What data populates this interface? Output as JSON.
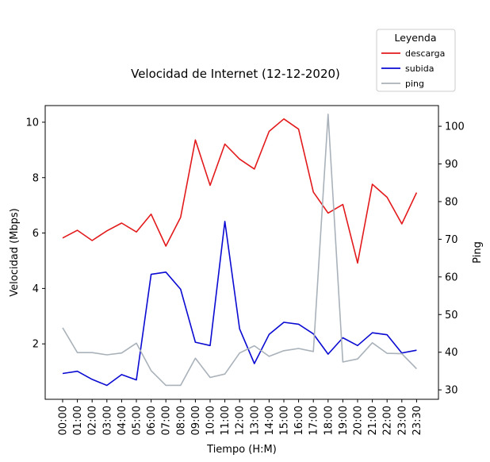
{
  "chart_data": {
    "type": "line",
    "title": "Velocidad de Internet (12-12-2020)",
    "xlabel": "Tiempo (H:M)",
    "ylabel": "Velocidad (Mbps)",
    "y2label": "Ping",
    "categories": [
      "00:00",
      "01:00",
      "02:00",
      "03:00",
      "04:00",
      "05:00",
      "06:00",
      "07:00",
      "08:00",
      "09:00",
      "10:00",
      "11:00",
      "12:00",
      "13:00",
      "14:00",
      "15:00",
      "16:00",
      "17:00",
      "18:00",
      "19:00",
      "20:00",
      "21:00",
      "22:00",
      "23:00",
      "23:30"
    ],
    "ylim": [
      0,
      10.6
    ],
    "y2lim": [
      27.5,
      105.5
    ],
    "yticks": [
      2,
      4,
      6,
      8,
      10
    ],
    "y2ticks": [
      30,
      40,
      50,
      60,
      70,
      80,
      90,
      100
    ],
    "grid": false,
    "legend": {
      "title": "Leyenda",
      "position": "top-right"
    },
    "series": [
      {
        "name": "descarga",
        "axis": "left",
        "color": "#e31a1c",
        "values": [
          5.82,
          6.1,
          5.73,
          6.08,
          6.36,
          6.04,
          6.68,
          5.53,
          6.57,
          9.36,
          7.72,
          9.21,
          8.67,
          8.31,
          9.67,
          10.12,
          9.75,
          7.48,
          6.72,
          7.03,
          4.92,
          7.76,
          7.29,
          6.33,
          7.46
        ]
      },
      {
        "name": "subida",
        "axis": "left",
        "color": "#0a0ad2",
        "values": [
          0.93,
          1.01,
          0.72,
          0.5,
          0.89,
          0.7,
          4.51,
          4.59,
          3.97,
          2.06,
          1.94,
          6.42,
          2.54,
          1.29,
          2.34,
          2.78,
          2.71,
          2.36,
          1.63,
          2.22,
          1.94,
          2.4,
          2.33,
          1.67,
          1.77
        ]
      },
      {
        "name": "ping",
        "axis": "right",
        "color": "#a9b2ba",
        "values": [
          46.5,
          39.9,
          39.9,
          39.3,
          39.8,
          42.4,
          35.1,
          31.2,
          31.2,
          38.4,
          33.3,
          34.2,
          39.8,
          41.7,
          38.9,
          40.4,
          41.0,
          40.2,
          103.2,
          37.4,
          38.2,
          42.5,
          39.7,
          39.6,
          35.6
        ]
      }
    ]
  }
}
